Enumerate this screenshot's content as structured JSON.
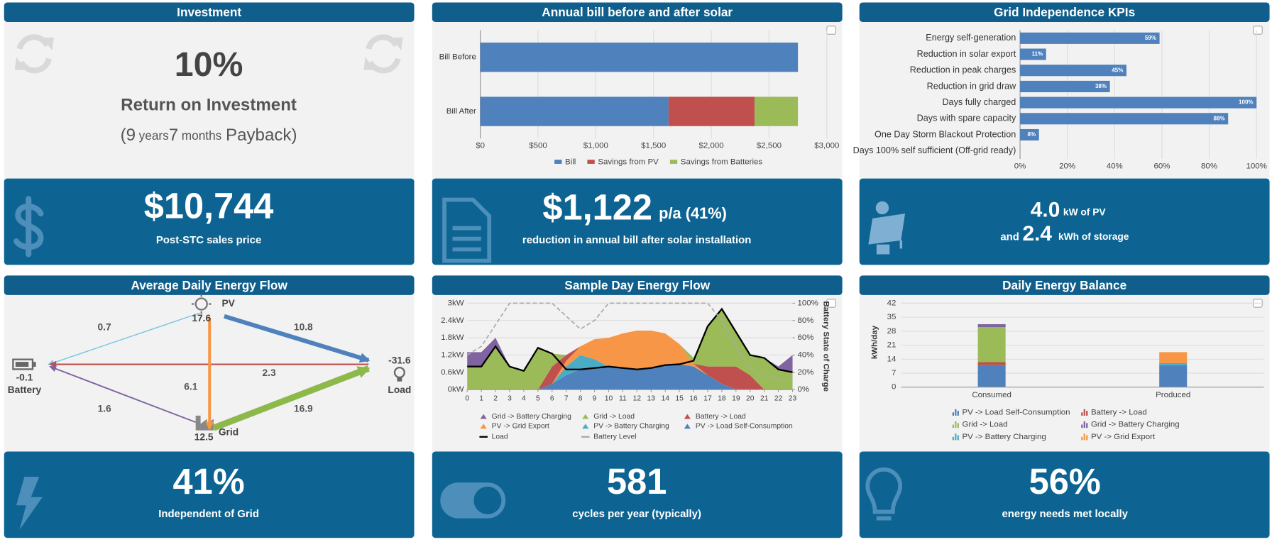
{
  "panels": [
    {
      "title": "Investment",
      "roi": "10%",
      "roi_label": "Return on Investment",
      "payback": [
        "(",
        "9",
        "years",
        "7",
        "months",
        "Payback)"
      ],
      "value": "$10,744",
      "label": "Post-STC sales price"
    },
    {
      "title": "Annual bill before and after solar",
      "value": "$1,122",
      "suffix": "p/a (41%)",
      "label": "reduction in annual bill after solar installation"
    },
    {
      "title": "Grid Independence KPIs",
      "pv": "4.0",
      "pv_unit": "kW of PV",
      "and": "and",
      "storage": "2.4",
      "storage_unit": "kWh of storage"
    },
    {
      "title": "Average Daily Energy Flow",
      "value": "41%",
      "label": "Independent of Grid"
    },
    {
      "title": "Sample Day Energy Flow",
      "value": "581",
      "label": "cycles per year (typically)"
    },
    {
      "title": "Daily Energy Balance",
      "value": "56%",
      "label": "energy needs met locally"
    }
  ],
  "energy_flow": {
    "nodes": [
      {
        "label": "PV",
        "value": 17.6
      },
      {
        "label": "Battery",
        "value": -0.1
      },
      {
        "label": "Load",
        "value": -31.6
      },
      {
        "label": "Grid",
        "value": 12.5
      }
    ],
    "edges": [
      {
        "value": 0.7,
        "color": "#7cc8e0"
      },
      {
        "value": 10.8,
        "color": "#4f81bd"
      },
      {
        "value": 2.3,
        "color": "#c0504d"
      },
      {
        "value": 6.1,
        "color": "#f79646"
      },
      {
        "value": 1.6,
        "color": "#8064a2"
      },
      {
        "value": 16.9,
        "color": "#8db84a"
      }
    ]
  },
  "chart_data": [
    {
      "type": "bar",
      "orientation": "horizontal",
      "stacked": true,
      "categories": [
        "Bill Before",
        "Bill After"
      ],
      "series": [
        {
          "name": "Bill",
          "color": "#4f81bd",
          "values": [
            2750,
            1630
          ]
        },
        {
          "name": "Savings from PV",
          "color": "#c0504d",
          "values": [
            null,
            745
          ]
        },
        {
          "name": "Savings from Batteries",
          "color": "#9bbb59",
          "values": [
            null,
            375
          ]
        }
      ],
      "xlim": [
        0,
        3000
      ],
      "xticks": [
        {
          "value": 0,
          "label": "$0"
        },
        {
          "value": 500,
          "label": "$500"
        },
        {
          "value": 1000,
          "label": "$1,000"
        },
        {
          "value": 1500,
          "label": "$1,500"
        },
        {
          "value": 2000,
          "label": "$2,000"
        },
        {
          "value": 2500,
          "label": "$2,500"
        },
        {
          "value": 3000,
          "label": "$3,000"
        }
      ],
      "grid": true
    },
    {
      "type": "bar",
      "orientation": "horizontal",
      "categories": [
        "Energy self-generation",
        "Reduction in solar export",
        "Reduction in peak charges",
        "Reduction in grid draw",
        "Days fully charged",
        "Days with spare capacity",
        "One Day Storm Blackout Protection",
        "Days 100% self sufficient (Off-grid ready)"
      ],
      "values": [
        59,
        11,
        45,
        38,
        100,
        88,
        8,
        0
      ],
      "value_labels": [
        "59%",
        "11%",
        "45%",
        "38%",
        "100%",
        "88%",
        "8%",
        null
      ],
      "color": "#4f81bd",
      "xlim": [
        0,
        100
      ],
      "xticks": [
        {
          "value": 0,
          "label": "0%"
        },
        {
          "value": 20,
          "label": "20%"
        },
        {
          "value": 40,
          "label": "40%"
        },
        {
          "value": 60,
          "label": "60%"
        },
        {
          "value": 80,
          "label": "80%"
        },
        {
          "value": 100,
          "label": "100%"
        }
      ],
      "grid": true
    },
    {
      "type": "area",
      "stacked": true,
      "x": [
        0,
        1,
        2,
        3,
        4,
        5,
        6,
        7,
        8,
        9,
        10,
        11,
        12,
        13,
        14,
        15,
        16,
        17,
        18,
        19,
        20,
        21,
        22,
        23
      ],
      "xlim": [
        0,
        23
      ],
      "xticks": [
        0,
        1,
        2,
        3,
        4,
        5,
        6,
        7,
        8,
        9,
        10,
        11,
        12,
        13,
        14,
        15,
        16,
        17,
        18,
        19,
        20,
        21,
        22,
        23
      ],
      "ylim": [
        0,
        3
      ],
      "yticks": [
        {
          "value": 0,
          "label": "0kW"
        },
        {
          "value": 0.6,
          "label": "0.6kW"
        },
        {
          "value": 1.2,
          "label": "1.2kW"
        },
        {
          "value": 1.8,
          "label": "1.8kW"
        },
        {
          "value": 2.4,
          "label": "2.4kW"
        },
        {
          "value": 3,
          "label": "3kW"
        }
      ],
      "y2lim": [
        0,
        100
      ],
      "y2ticks": [
        {
          "value": 0,
          "label": "0%"
        },
        {
          "value": 20,
          "label": "20%"
        },
        {
          "value": 40,
          "label": "40%"
        },
        {
          "value": 60,
          "label": "60%"
        },
        {
          "value": 80,
          "label": "80%"
        },
        {
          "value": 100,
          "label": "100%"
        }
      ],
      "y2label": "Battery State of Charge",
      "grid": true,
      "series": [
        {
          "name": "Grid -> Battery Charging",
          "type": "area",
          "color": "#8064a2",
          "values": [
            0.5,
            0.5,
            0.3,
            0,
            0,
            0,
            0,
            0,
            0,
            0,
            0,
            0,
            0,
            0,
            0,
            0,
            0,
            0,
            0,
            0,
            0,
            0,
            0.1,
            0.6
          ]
        },
        {
          "name": "Grid -> Load",
          "type": "area",
          "color": "#9bbb59",
          "values": [
            0.8,
            0.8,
            1.5,
            0.8,
            0.65,
            1.45,
            0.45,
            0,
            0,
            0,
            0,
            0,
            0,
            0,
            0,
            0,
            0.2,
            1.4,
            2.0,
            1.2,
            0.7,
            1.1,
            0.7,
            0.6
          ]
        },
        {
          "name": "Battery -> Load",
          "type": "area",
          "color": "#c0504d",
          "values": [
            0,
            0,
            0,
            0,
            0,
            0,
            0.6,
            0.2,
            0,
            0,
            0,
            0,
            0,
            0,
            0,
            0,
            0,
            0.3,
            0.6,
            0.8,
            0.5,
            0,
            0,
            0
          ]
        },
        {
          "name": "PV -> Grid Export",
          "type": "area",
          "color": "#f79646",
          "values": [
            0,
            0,
            0,
            0,
            0,
            0,
            0,
            0.2,
            0.3,
            0.7,
            1.0,
            1.2,
            1.35,
            1.3,
            1.1,
            0.7,
            0.1,
            0,
            0,
            0,
            0,
            0,
            0,
            0
          ]
        },
        {
          "name": "PV -> Battery Charging",
          "type": "area",
          "color": "#4bacc6",
          "values": [
            0,
            0,
            0,
            0,
            0,
            0,
            0,
            0.3,
            0.5,
            0.3,
            0,
            0,
            0,
            0,
            0,
            0,
            0,
            0,
            0,
            0,
            0,
            0,
            0,
            0
          ]
        },
        {
          "name": "PV -> Load Self-Consumption",
          "type": "area",
          "color": "#4f81bd",
          "values": [
            0,
            0,
            0,
            0,
            0,
            0,
            0.2,
            0.5,
            0.7,
            0.75,
            0.8,
            0.75,
            0.7,
            0.75,
            0.85,
            0.88,
            0.8,
            0.5,
            0.2,
            0,
            0,
            0,
            0,
            0
          ]
        },
        {
          "name": "Load",
          "type": "line",
          "color": "#000000",
          "values": [
            0.8,
            0.8,
            1.5,
            0.8,
            0.65,
            1.45,
            1.25,
            0.7,
            0.7,
            0.75,
            0.8,
            0.75,
            0.7,
            0.75,
            0.85,
            0.88,
            1.0,
            2.2,
            2.8,
            2.0,
            1.2,
            1.1,
            0.7,
            0.6
          ]
        },
        {
          "name": "Battery Level",
          "type": "line",
          "axis": "y2",
          "dash": true,
          "color": "#aaaaaa",
          "values": [
            40,
            50,
            75,
            100,
            100,
            100,
            100,
            85,
            70,
            80,
            100,
            100,
            100,
            100,
            100,
            100,
            100,
            100,
            80,
            50,
            25,
            15,
            12,
            12
          ]
        }
      ]
    },
    {
      "type": "bar",
      "stacked": true,
      "categories": [
        "Consumed",
        "Produced"
      ],
      "ylabel": "kWh/day",
      "ylim": [
        0,
        42
      ],
      "yticks": [
        0,
        7,
        14,
        21,
        28,
        35,
        42
      ],
      "grid": true,
      "series": [
        {
          "name": "PV -> Load Self-Consumption",
          "color": "#4f81bd",
          "values": [
            11,
            11
          ]
        },
        {
          "name": "Battery -> Load",
          "color": "#c0504d",
          "values": [
            1.5,
            null
          ]
        },
        {
          "name": "Grid -> Load",
          "color": "#9bbb59",
          "values": [
            17.5,
            null
          ]
        },
        {
          "name": "Grid -> Battery Charging",
          "color": "#8064a2",
          "values": [
            1.5,
            null
          ]
        },
        {
          "name": "PV -> Battery Charging",
          "color": "#4bacc6",
          "values": [
            null,
            1
          ]
        },
        {
          "name": "PV -> Grid Export",
          "color": "#f79646",
          "values": [
            null,
            5.5
          ]
        }
      ]
    }
  ]
}
